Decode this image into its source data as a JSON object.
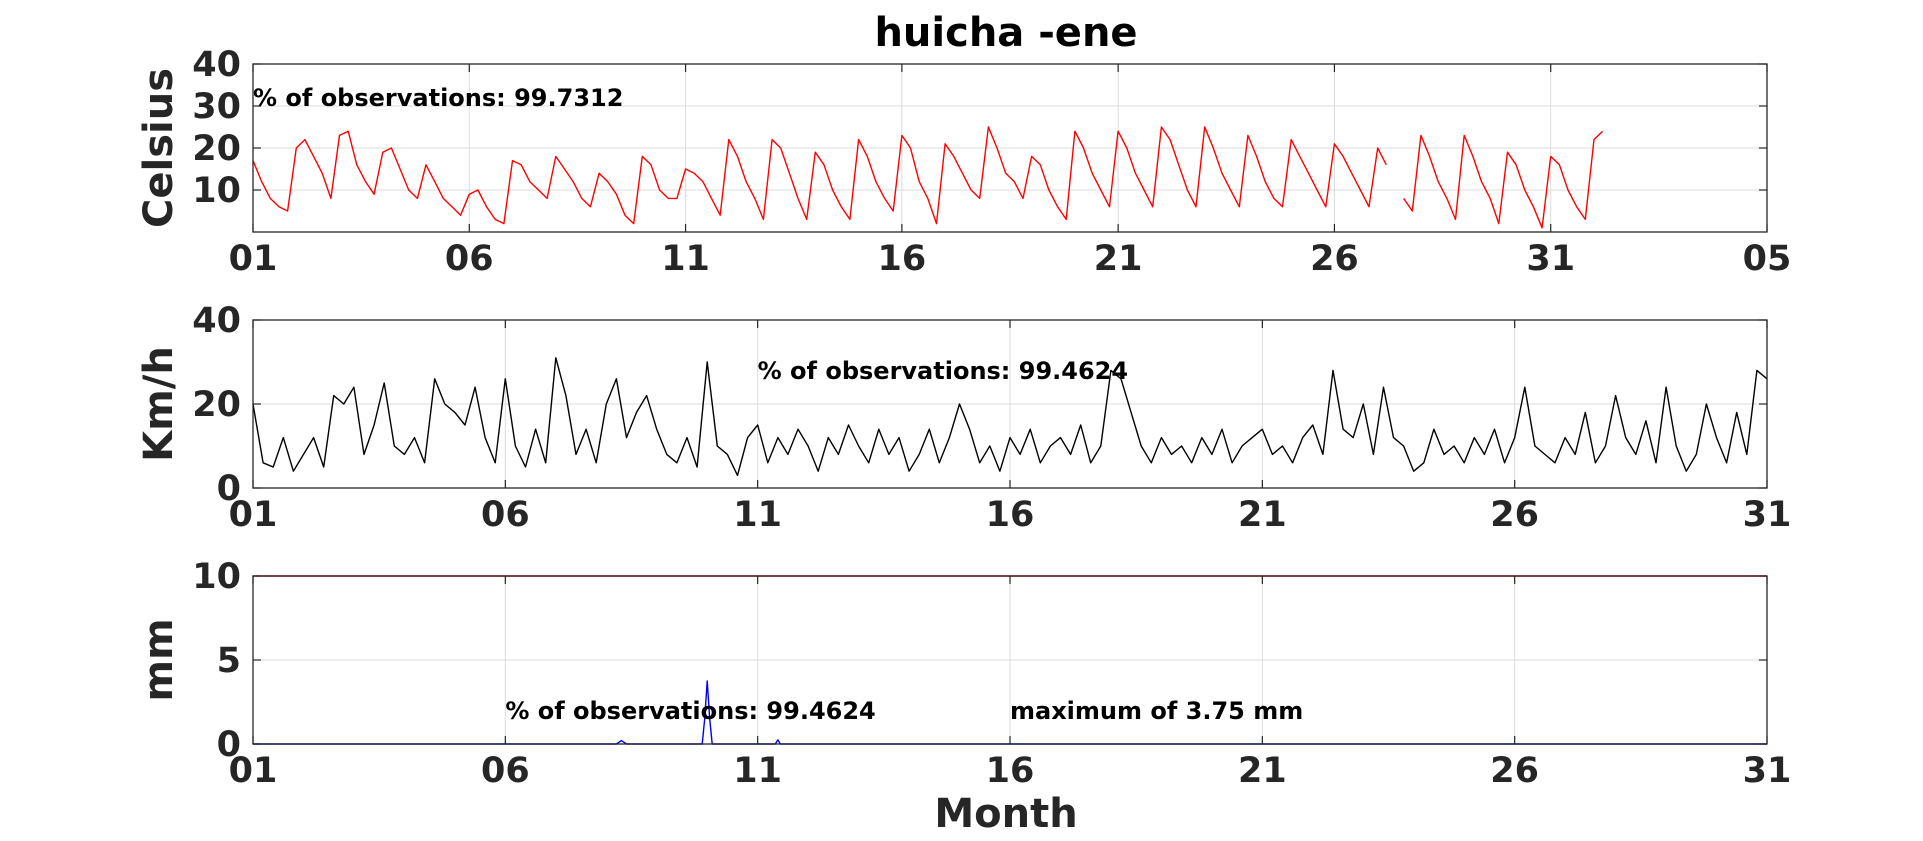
{
  "figure": {
    "title": "huicha -ene",
    "xlabel": "Month"
  },
  "chart_data": [
    {
      "type": "line",
      "ylabel": "Celsius",
      "ylim": [
        0,
        40
      ],
      "yticks": [
        "10",
        "20",
        "30",
        "40"
      ],
      "ytick_values": [
        10,
        20,
        30,
        40
      ],
      "xlim": [
        1,
        36
      ],
      "xticks": [
        "01",
        "06",
        "11",
        "16",
        "21",
        "26",
        "31",
        "05"
      ],
      "xtick_values": [
        1,
        6,
        11,
        16,
        21,
        26,
        31,
        36
      ],
      "grid": true,
      "annotation": "% of observations: 99.7312",
      "series": [
        {
          "color": "#ff0000",
          "x": [
            1.0,
            1.2,
            1.4,
            1.6,
            1.8,
            2.0,
            2.2,
            2.4,
            2.6,
            2.8,
            3.0,
            3.2,
            3.4,
            3.6,
            3.8,
            4.0,
            4.2,
            4.4,
            4.6,
            4.8,
            5.0,
            5.2,
            5.4,
            5.6,
            5.8,
            6.0,
            6.2,
            6.4,
            6.6,
            6.8,
            7.0,
            7.2,
            7.4,
            7.6,
            7.8,
            8.0,
            8.2,
            8.4,
            8.6,
            8.8,
            9.0,
            9.2,
            9.4,
            9.6,
            9.8,
            10.0,
            10.2,
            10.4,
            10.6,
            10.8,
            11.0,
            11.2,
            11.4,
            11.6,
            11.8,
            12.0,
            12.2,
            12.4,
            12.6,
            12.8,
            13.0,
            13.2,
            13.4,
            13.6,
            13.8,
            14.0,
            14.2,
            14.4,
            14.6,
            14.8,
            15.0,
            15.2,
            15.4,
            15.6,
            15.8,
            16.0,
            16.2,
            16.4,
            16.6,
            16.8,
            17.0,
            17.2,
            17.4,
            17.6,
            17.8,
            18.0,
            18.2,
            18.4,
            18.6,
            18.8,
            19.0,
            19.2,
            19.4,
            19.6,
            19.8,
            20.0,
            20.2,
            20.4,
            20.6,
            20.8,
            21.0,
            21.2,
            21.4,
            21.6,
            21.8,
            22.0,
            22.2,
            22.4,
            22.6,
            22.8,
            23.0,
            23.2,
            23.4,
            23.6,
            23.8,
            24.0,
            24.2,
            24.4,
            24.6,
            24.8,
            25.0,
            25.2,
            25.4,
            25.6,
            25.8,
            26.0,
            26.2,
            26.4,
            26.6,
            26.8,
            27.0,
            27.2,
            27.4,
            27.6,
            27.8,
            28.0,
            28.2,
            28.4,
            28.6,
            28.8,
            29.0,
            29.2,
            29.4,
            29.6,
            29.8,
            30.0,
            30.2,
            30.4,
            30.6,
            30.8,
            31.0,
            31.2,
            31.4,
            31.6,
            31.8,
            32.0,
            32.2
          ],
          "y": [
            17,
            12,
            8,
            6,
            5,
            20,
            22,
            18,
            14,
            8,
            23,
            24,
            16,
            12,
            9,
            19,
            20,
            15,
            10,
            8,
            16,
            12,
            8,
            6,
            4,
            9,
            10,
            6,
            3,
            2,
            17,
            16,
            12,
            10,
            8,
            18,
            15,
            12,
            8,
            6,
            14,
            12,
            9,
            4,
            2,
            18,
            16,
            10,
            8,
            8,
            15,
            14,
            12,
            8,
            4,
            22,
            18,
            12,
            8,
            3,
            22,
            20,
            14,
            8,
            3,
            19,
            16,
            10,
            6,
            3,
            22,
            18,
            12,
            8,
            5,
            23,
            20,
            12,
            8,
            2,
            21,
            18,
            14,
            10,
            8,
            25,
            20,
            14,
            12,
            8,
            18,
            16,
            10,
            6,
            3,
            24,
            20,
            14,
            10,
            6,
            24,
            20,
            14,
            10,
            6,
            25,
            22,
            16,
            10,
            6,
            25,
            20,
            14,
            10,
            6,
            23,
            18,
            12,
            8,
            6,
            22,
            18,
            14,
            10,
            6,
            21,
            18,
            14,
            10,
            6,
            20,
            16,
            null,
            8,
            5,
            23,
            18,
            12,
            8,
            3,
            23,
            18,
            12,
            8,
            2,
            19,
            16,
            10,
            6,
            1,
            18,
            16,
            10,
            6,
            3,
            22,
            24
          ]
        }
      ]
    },
    {
      "type": "line",
      "ylabel": "Km/h",
      "ylim": [
        0,
        40
      ],
      "yticks": [
        "0",
        "20",
        "40"
      ],
      "ytick_values": [
        0,
        20,
        40
      ],
      "xlim": [
        1,
        31
      ],
      "xticks": [
        "01",
        "06",
        "11",
        "16",
        "21",
        "26",
        "31"
      ],
      "xtick_values": [
        1,
        6,
        11,
        16,
        21,
        26,
        31
      ],
      "grid": true,
      "annotation": "% of observations: 99.4624",
      "series": [
        {
          "color": "#000000",
          "x": [
            1.0,
            1.2,
            1.4,
            1.6,
            1.8,
            2.0,
            2.2,
            2.4,
            2.6,
            2.8,
            3.0,
            3.2,
            3.4,
            3.6,
            3.8,
            4.0,
            4.2,
            4.4,
            4.6,
            4.8,
            5.0,
            5.2,
            5.4,
            5.6,
            5.8,
            6.0,
            6.2,
            6.4,
            6.6,
            6.8,
            7.0,
            7.2,
            7.4,
            7.6,
            7.8,
            8.0,
            8.2,
            8.4,
            8.6,
            8.8,
            9.0,
            9.2,
            9.4,
            9.6,
            9.8,
            10.0,
            10.2,
            10.4,
            10.6,
            10.8,
            11.0,
            11.2,
            11.4,
            11.6,
            11.8,
            12.0,
            12.2,
            12.4,
            12.6,
            12.8,
            13.0,
            13.2,
            13.4,
            13.6,
            13.8,
            14.0,
            14.2,
            14.4,
            14.6,
            14.8,
            15.0,
            15.2,
            15.4,
            15.6,
            15.8,
            16.0,
            16.2,
            16.4,
            16.6,
            16.8,
            17.0,
            17.2,
            17.4,
            17.6,
            17.8,
            18.0,
            18.2,
            18.4,
            18.6,
            18.8,
            19.0,
            19.2,
            19.4,
            19.6,
            19.8,
            20.0,
            20.2,
            20.4,
            20.6,
            20.8,
            21.0,
            21.2,
            21.4,
            21.6,
            21.8,
            22.0,
            22.2,
            22.4,
            22.6,
            22.8,
            23.0,
            23.2,
            23.4,
            23.6,
            23.8,
            24.0,
            24.2,
            24.4,
            24.6,
            24.8,
            25.0,
            25.2,
            25.4,
            25.6,
            25.8,
            26.0,
            26.2,
            26.4,
            26.6,
            26.8,
            27.0,
            27.2,
            27.4,
            27.6,
            27.8,
            28.0,
            28.2,
            28.4,
            28.6,
            28.8,
            29.0,
            29.2,
            29.4,
            29.6,
            29.8,
            30.0,
            30.2,
            30.4,
            30.6,
            30.8,
            31.0
          ],
          "y": [
            20,
            6,
            5,
            12,
            4,
            8,
            12,
            5,
            22,
            20,
            24,
            8,
            15,
            25,
            10,
            8,
            12,
            6,
            26,
            20,
            18,
            15,
            24,
            12,
            6,
            26,
            10,
            5,
            14,
            6,
            31,
            22,
            8,
            14,
            6,
            20,
            26,
            12,
            18,
            22,
            14,
            8,
            6,
            12,
            5,
            30,
            10,
            8,
            3,
            12,
            15,
            6,
            12,
            8,
            14,
            10,
            4,
            12,
            8,
            15,
            10,
            6,
            14,
            8,
            12,
            4,
            8,
            14,
            6,
            12,
            20,
            14,
            6,
            10,
            4,
            12,
            8,
            14,
            6,
            10,
            12,
            8,
            15,
            6,
            10,
            28,
            26,
            18,
            10,
            6,
            12,
            8,
            10,
            6,
            12,
            8,
            14,
            6,
            10,
            12,
            14,
            8,
            10,
            6,
            12,
            15,
            8,
            28,
            14,
            12,
            20,
            8,
            24,
            12,
            10,
            4,
            6,
            14,
            8,
            10,
            6,
            12,
            8,
            14,
            6,
            12,
            24,
            10,
            8,
            6,
            12,
            8,
            18,
            6,
            10,
            22,
            12,
            8,
            16,
            6,
            24,
            10,
            4,
            8,
            20,
            12,
            6,
            18,
            8,
            28,
            26
          ]
        }
      ]
    },
    {
      "type": "line",
      "ylabel": "mm",
      "ylim": [
        0,
        10
      ],
      "yticks": [
        "0",
        "5",
        "10"
      ],
      "ytick_values": [
        0,
        5,
        10
      ],
      "xlim": [
        1,
        31
      ],
      "xticks": [
        "01",
        "06",
        "11",
        "16",
        "21",
        "26",
        "31"
      ],
      "xtick_values": [
        1,
        6,
        11,
        16,
        21,
        26,
        31
      ],
      "grid": true,
      "annotation": "% of observations: 99.4624",
      "annotation2": "maximum of 3.75 mm",
      "series": [
        {
          "color": "#0000ff",
          "x": [
            1.0,
            8.2,
            8.3,
            8.4,
            9.9,
            9.95,
            10.0,
            10.05,
            10.1,
            10.2,
            11.35,
            11.4,
            11.45,
            31.0
          ],
          "y": [
            0,
            0,
            0.2,
            0,
            0,
            1.5,
            3.75,
            1.5,
            0,
            0,
            0,
            0.25,
            0,
            0
          ]
        },
        {
          "color": "#ff0000",
          "x": [
            1.0,
            31.0
          ],
          "y": [
            10,
            10
          ]
        }
      ]
    }
  ]
}
